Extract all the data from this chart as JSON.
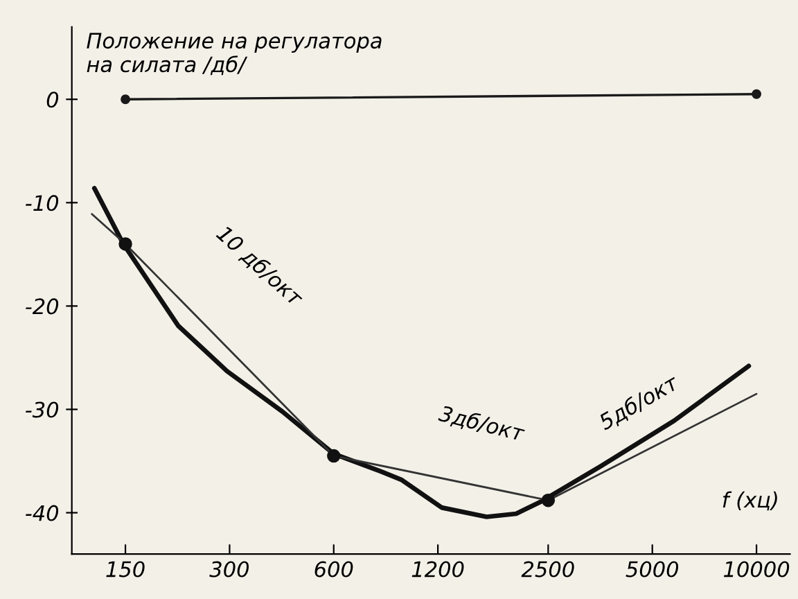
{
  "chart_data": {
    "type": "line",
    "ylabel": "Положение на регулатора\nна силата /дб/",
    "xlabel": "f (хц)",
    "log": "x",
    "xlim": [
      105,
      12500
    ],
    "ylim": [
      -44,
      7
    ],
    "xticks": [
      150,
      300,
      600,
      1200,
      2500,
      5000,
      10000
    ],
    "yticks": [
      0,
      -10,
      -20,
      -30,
      -40
    ],
    "grid": false,
    "legend": false,
    "series": [
      {
        "color": "#1a1a1a",
        "marker": "circle",
        "x": [
          150,
          10000
        ],
        "values": [
          0,
          0.5
        ]
      },
      {
        "color": "#111111",
        "marker": "none",
        "x": [
          122,
          148,
          213,
          295,
          426,
          600,
          820,
          940,
          1230,
          1660,
          2020,
          2390,
          3550,
          5780,
          9500
        ],
        "values": [
          -8.6,
          -14,
          -21.9,
          -26.3,
          -30.2,
          -34.3,
          -36,
          -36.8,
          -39.5,
          -40.4,
          -40.1,
          -38.9,
          -35.5,
          -31.1,
          -25.8
        ]
      },
      {
        "color": "#333333",
        "marker": "none",
        "x": [
          120,
          150,
          600,
          2500,
          10000
        ],
        "values": [
          -11.1,
          -14,
          -34.5,
          -38.8,
          -28.5
        ]
      },
      {
        "type": "scatter",
        "color": "#111111",
        "marker": "circle",
        "x": [
          150,
          600,
          2500
        ],
        "values": [
          -14,
          -34.5,
          -38.8
        ]
      }
    ],
    "annotations": [
      "10 дб/окт",
      "3дб/окт",
      "5дб/окт"
    ]
  }
}
